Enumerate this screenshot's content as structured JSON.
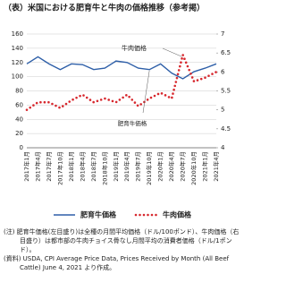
{
  "chart_data": {
    "type": "line",
    "title": "（表）米国における肥育牛と牛肉の価格推移（参考掲）",
    "categories": [
      "2017年1月",
      "2017年4月",
      "2017年7月",
      "2017年10月",
      "2018年1月",
      "2018年4月",
      "2018年7月",
      "2018年10月",
      "2019年1月",
      "2019年4月",
      "2019年7月",
      "2019年10月",
      "2020年1月",
      "2020年4月",
      "2020年7月",
      "2020年10月",
      "2021年1月",
      "2021年4月"
    ],
    "series": [
      {
        "name": "肥育牛価格",
        "color": "#2e5fa8",
        "style": "solid",
        "axis": "y",
        "values": [
          118,
          128,
          118,
          110,
          118,
          117,
          110,
          112,
          122,
          120,
          112,
          110,
          118,
          105,
          97,
          107,
          112,
          118
        ]
      },
      {
        "name": "牛肉価格",
        "color": "#d7282e",
        "style": "dotted",
        "axis": "y2",
        "values": [
          5.0,
          5.2,
          5.2,
          5.05,
          5.25,
          5.4,
          5.2,
          5.3,
          5.2,
          5.4,
          5.1,
          5.3,
          5.45,
          5.3,
          6.45,
          5.75,
          5.85,
          6.0
        ]
      }
    ],
    "ylim": [
      0,
      160
    ],
    "yticks": [
      0,
      20,
      40,
      60,
      80,
      100,
      120,
      140,
      160
    ],
    "y2lim": [
      4,
      7
    ],
    "y2ticks": [
      4,
      4.5,
      5,
      5.5,
      6,
      6.5,
      7
    ],
    "grid": true,
    "annotations": [
      "牛肉価格",
      "肥育牛価格"
    ],
    "notes": [
      "(注) 肥育牛価格(左目盛り)は全種の月間平均価格（ドル/100ポンド）、牛肉価格（右目盛り）は都市部の牛肉チョイス骨なし月間平均の消費者価格（ドル/1ポンド）。",
      "(資料) USDA, CPI Average Price Data, Prices Received by Month (All Beef Cattle) June 4, 2021 より作成。"
    ]
  }
}
